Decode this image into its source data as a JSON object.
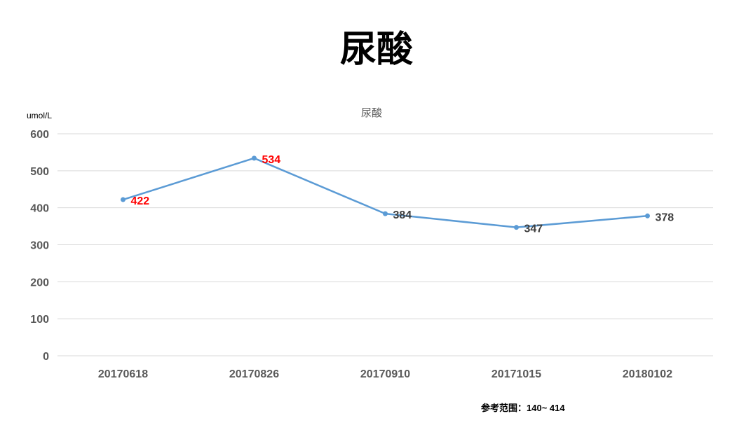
{
  "page": {
    "title": "尿酸"
  },
  "reference": {
    "text": "参考范围：140~ 414"
  },
  "chart_data": {
    "type": "line",
    "title": "尿酸",
    "ylabel": "umol/L",
    "xlabel": "",
    "categories": [
      "20170618",
      "20170826",
      "20170910",
      "20171015",
      "20180102"
    ],
    "values": [
      422,
      534,
      384,
      347,
      378
    ],
    "ylim": [
      0,
      600
    ],
    "yticks": [
      0,
      100,
      200,
      300,
      400,
      500,
      600
    ],
    "grid": true,
    "legend": "none",
    "colors": {
      "line": "#5B9BD5",
      "grid": "#D9D9D9",
      "label_high": "#FF0000",
      "label_normal": "#404040"
    },
    "label_colors": [
      "label_high",
      "label_high",
      "label_normal",
      "label_normal",
      "label_normal"
    ]
  }
}
